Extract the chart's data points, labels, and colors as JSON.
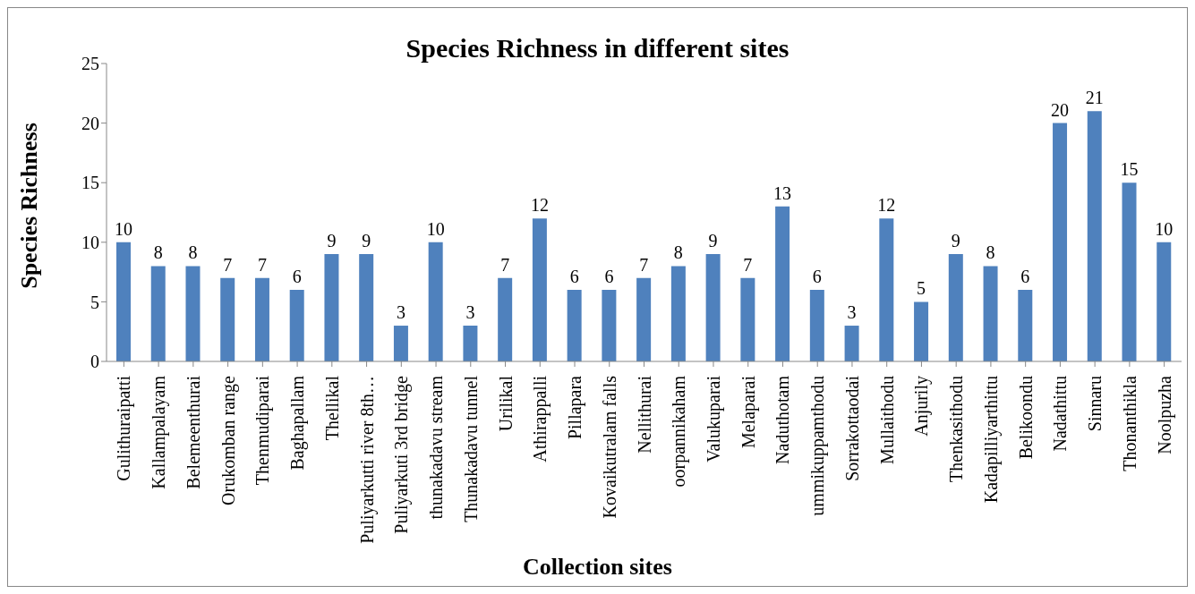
{
  "chart_data": {
    "type": "bar",
    "title": "Species Richness in different sites",
    "xlabel": "Collection sites",
    "ylabel": "Species Richness",
    "categories": [
      "Gulithuraipatti",
      "Kallampalayam",
      "Belemeenthurai",
      "Orukomban range",
      "Thenmudiparai",
      "Baghapallam",
      "Thellikal",
      "Puliyarkutti river 8th…",
      "Puliyarkuti 3rd bridge",
      "thunakadavu stream",
      "Thunakadavu tunnel",
      "Urilikal",
      "Athirappalli",
      "Pillapara",
      "Kovaikutralam falls",
      "Nellithurai",
      "oorpannikaham",
      "Valukuparai",
      "Melaparai",
      "Naduthotam",
      "ummikuppamthodu",
      "Sorrakottaodai",
      "Mullaithodu",
      "Anjurily",
      "Thenkasithodu",
      "Kadapilliyarthittu",
      "Belikoondu",
      "Nadathittu",
      "Sinnaru",
      "Thonanthikla",
      "Noolpuzha"
    ],
    "values": [
      10,
      8,
      8,
      7,
      7,
      6,
      9,
      9,
      3,
      10,
      3,
      7,
      12,
      6,
      6,
      7,
      8,
      9,
      7,
      13,
      6,
      3,
      12,
      5,
      9,
      8,
      6,
      20,
      21,
      15,
      10
    ],
    "color": "#4f81bd",
    "ylim": [
      0,
      25
    ],
    "yticks": [
      0,
      5,
      10,
      15,
      20,
      25
    ],
    "data_labels": true
  }
}
